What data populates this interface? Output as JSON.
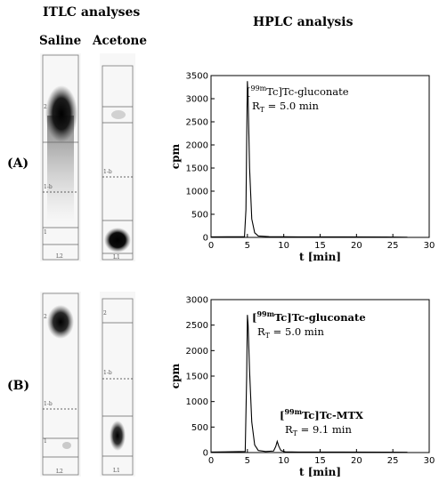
{
  "headers": {
    "itlc": "ITLC analyses",
    "saline": "Saline",
    "acetone": "Acetone",
    "hplc": "HPLC analysis"
  },
  "rows": {
    "a_label": "(A)",
    "b_label": "(B)"
  },
  "strip_marks": {
    "two": "2",
    "front": "1-b",
    "one": "1",
    "l2": "L2",
    "l1": "L1"
  },
  "chart_data": [
    {
      "type": "line",
      "xlabel": "t [min]",
      "ylabel": "cpm",
      "xlim": [
        0,
        30
      ],
      "ylim": [
        0,
        3500
      ],
      "xticks": [
        0,
        5,
        10,
        15,
        20,
        25,
        30
      ],
      "yticks": [
        0,
        500,
        1000,
        1500,
        2000,
        2500,
        3000,
        3500
      ],
      "x": [
        0,
        4.6,
        4.8,
        4.95,
        5.0,
        5.1,
        5.3,
        5.6,
        6.0,
        6.5,
        8,
        12,
        18,
        24,
        27
      ],
      "y": [
        10,
        15,
        600,
        2800,
        3380,
        3000,
        1500,
        400,
        100,
        30,
        15,
        10,
        10,
        8,
        5
      ],
      "annotations": [
        {
          "sup": "99m",
          "pre": "[",
          "text": "Tc]Tc-gluconate",
          "rt_text": "R",
          "rt_sub": "T",
          "rt_value": " = 5.0 min"
        }
      ]
    },
    {
      "type": "line",
      "xlabel": "t [min]",
      "ylabel": "cpm",
      "xlim": [
        0,
        30
      ],
      "ylim": [
        0,
        3000
      ],
      "xticks": [
        0,
        5,
        10,
        15,
        20,
        25,
        30
      ],
      "yticks": [
        0,
        500,
        1000,
        1500,
        2000,
        2500,
        3000
      ],
      "x": [
        0,
        4.7,
        4.9,
        5.0,
        5.1,
        5.3,
        5.6,
        6.0,
        6.5,
        7.5,
        8.6,
        8.9,
        9.1,
        9.3,
        9.6,
        10.2,
        12,
        18,
        24,
        27
      ],
      "y": [
        10,
        20,
        1500,
        2700,
        2500,
        1600,
        600,
        150,
        40,
        20,
        30,
        120,
        220,
        130,
        40,
        15,
        10,
        10,
        8,
        5
      ],
      "annotations": [
        {
          "sup": "99m",
          "pre": "[",
          "text": "Tc]Tc-gluconate",
          "rt_text": "R",
          "rt_sub": "T",
          "rt_value": " = 5.0 min"
        },
        {
          "sup": "99m",
          "pre": "[",
          "text": "Tc]Tc-MTX",
          "rt_text": "R",
          "rt_sub": "T",
          "rt_value": " = 9.1 min"
        }
      ]
    }
  ]
}
